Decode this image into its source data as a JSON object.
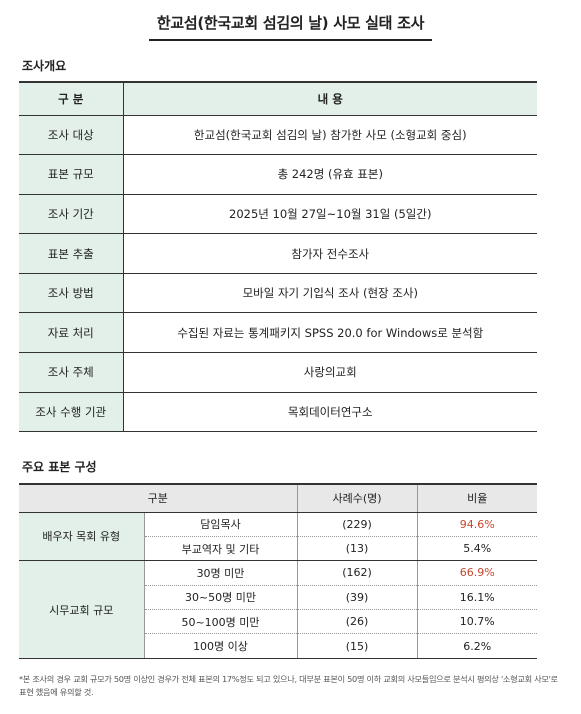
{
  "title": "한교섬(한국교회 섬김의 날) 사모 실태 조사",
  "overview": {
    "label": "조사개요",
    "header": {
      "key": "구 분",
      "value": "내 용"
    },
    "rows": [
      {
        "key": "조사 대상",
        "value": "한교섬(한국교회 섬김의 날) 참가한 사모  (소형교회 중심)"
      },
      {
        "key": "표본 규모",
        "value": "총 242명 (유효 표본)"
      },
      {
        "key": "조사 기간",
        "value": "2025년 10월 27일~10월 31일 (5일간)"
      },
      {
        "key": "표본 추출",
        "value": "참가자 전수조사"
      },
      {
        "key": "조사 방법",
        "value": "모바일 자기 기입식 조사 (현장 조사)"
      },
      {
        "key": "자료 처리",
        "value": "수집된 자료는 통계패키지 SPSS 20.0 for Windows로 분석함"
      },
      {
        "key": "조사 주체",
        "value": "사랑의교회"
      },
      {
        "key": "조사 수행 기관",
        "value": "목회데이터연구소"
      }
    ]
  },
  "sample": {
    "label": "주요 표본 구성",
    "header": {
      "category": "구분",
      "count": "사례수(명)",
      "ratio": "비율"
    },
    "groups": [
      {
        "name": "배우자 목회 유형",
        "rows": [
          {
            "sub": "담임목사",
            "count": "(229)",
            "ratio": "94.6%",
            "highlight": true
          },
          {
            "sub": "부교역자 및 기타",
            "count": "(13)",
            "ratio": "5.4%",
            "highlight": false
          }
        ]
      },
      {
        "name": "시무교회 규모",
        "rows": [
          {
            "sub": "30명 미만",
            "count": "(162)",
            "ratio": "66.9%",
            "highlight": true
          },
          {
            "sub": "30~50명 미만",
            "count": "(39)",
            "ratio": "16.1%",
            "highlight": false
          },
          {
            "sub": "50~100명 미만",
            "count": "(26)",
            "ratio": "10.7%",
            "highlight": false
          },
          {
            "sub": "100명 이상",
            "count": "(15)",
            "ratio": "6.2%",
            "highlight": false
          }
        ]
      }
    ],
    "highlight_color": "#c8452b"
  },
  "footnote": "*본 조사의 경우 교회 규모가 50명 이상인 경우가 전체 표본의 17%정도 되고 있으나, 대부분 표본이 50명 이하 교회의 사모들임으로 분석시 평의상 '소형교회 사모'로 표현 했음에 유의할 것."
}
